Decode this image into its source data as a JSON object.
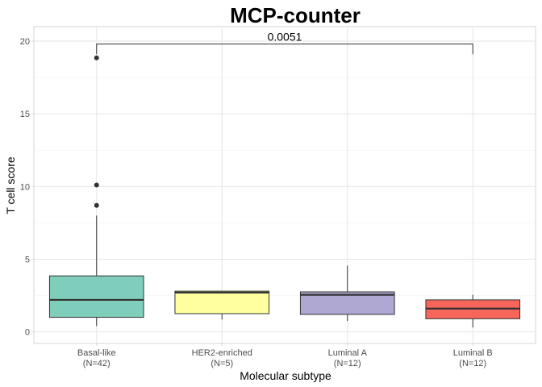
{
  "chart_data": {
    "type": "box",
    "title": "MCP-counter",
    "xlabel": "Molecular subtype",
    "ylabel": "T cell score",
    "ylim": [
      -0.8,
      21
    ],
    "yticks": [
      0,
      5,
      10,
      15,
      20
    ],
    "grid": true,
    "categories": [
      {
        "label": "Basal-like",
        "n_label": "(N=42)",
        "color": "#7fcdbb",
        "whisker_low": 0.4,
        "q1": 1.0,
        "median": 2.2,
        "q3": 3.85,
        "whisker_high": 8.0,
        "outliers": [
          8.7,
          10.1,
          18.85
        ]
      },
      {
        "label": "HER2-enriched",
        "n_label": "(N=5)",
        "color": "#ffffa0",
        "whisker_low": 0.85,
        "q1": 1.25,
        "median": 2.7,
        "q3": 2.8,
        "whisker_high": 2.8,
        "outliers": []
      },
      {
        "label": "Luminal A",
        "n_label": "(N=12)",
        "color": "#aea8d3",
        "whisker_low": 0.75,
        "q1": 1.2,
        "median": 2.55,
        "q3": 2.75,
        "whisker_high": 4.55,
        "outliers": []
      },
      {
        "label": "Luminal B",
        "n_label": "(N=12)",
        "color": "#f8665b",
        "whisker_low": 0.3,
        "q1": 0.9,
        "median": 1.6,
        "q3": 2.2,
        "whisker_high": 2.55,
        "outliers": []
      }
    ],
    "annotation": {
      "text": "0.0051",
      "from": "Basal-like",
      "to": "Luminal B",
      "y": 19.8,
      "tip_y": 19.1
    }
  }
}
